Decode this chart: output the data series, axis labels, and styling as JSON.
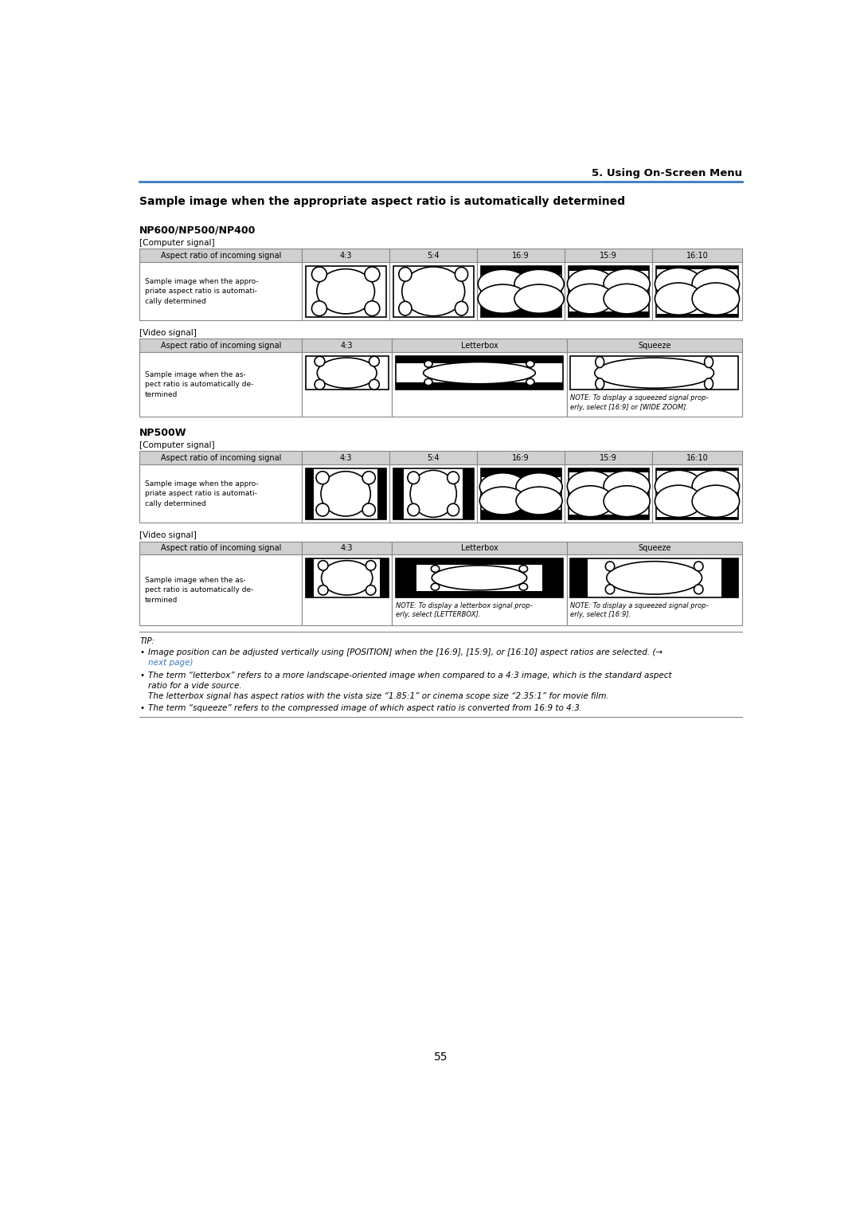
{
  "page_title": "5. Using On-Screen Menu",
  "main_title": "Sample image when the appropriate aspect ratio is automatically determined",
  "section1_title": "NP600/NP500/NP400",
  "section1_comp_label": "[Computer signal]",
  "section1_comp_headers": [
    "Aspect ratio of incoming signal",
    "4:3",
    "5:4",
    "16:9",
    "15:9",
    "16:10"
  ],
  "section1_comp_row_label": "Sample image when the appro-\npriate aspect ratio is automati-\ncally determined",
  "section1_vid_label": "[Video signal]",
  "section1_vid_headers": [
    "Aspect ratio of incoming signal",
    "4:3",
    "Letterbox",
    "Squeeze"
  ],
  "section1_vid_row_label": "Sample image when the as-\npect ratio is automatically de-\ntermined",
  "section1_vid_note": "NOTE: To display a squeezed signal prop-\nerly, select [16:9] or [WIDE ZOOM].",
  "section2_title": "NP500W",
  "section2_comp_label": "[Computer signal]",
  "section2_comp_headers": [
    "Aspect ratio of incoming signal",
    "4:3",
    "5:4",
    "16:9",
    "15:9",
    "16:10"
  ],
  "section2_comp_row_label": "Sample image when the appro-\npriate aspect ratio is automati-\ncally determined",
  "section2_vid_label": "[Video signal]",
  "section2_vid_headers": [
    "Aspect ratio of incoming signal",
    "4:3",
    "Letterbox",
    "Squeeze"
  ],
  "section2_vid_row_label": "Sample image when the as-\npect ratio is automatically de-\ntermined",
  "section2_vid_note1": "NOTE: To display a letterbox signal prop-\nerly, select [LETTERBOX].",
  "section2_vid_note2": "NOTE: To display a squeezed signal prop-\nerly, select [16:9].",
  "tip_title": "TIP:",
  "tip_bullets": [
    "Image position can be adjusted vertically using [POSITION] when the [16:9], [15:9], or [16:10] aspect ratios are selected. (→",
    "next page)",
    "The term “letterbox” refers to a more landscape-oriented image when compared to a 4:3 image, which is the standard aspect",
    "ratio for a vide source.",
    "The letterbox signal has aspect ratios with the vista size “1.85:1” or cinema scope size “2.35:1” for movie film.",
    "The term “squeeze” refers to the compressed image of which aspect ratio is converted from 16:9 to 4:3."
  ],
  "tip_link_text": "next page",
  "page_number": "55",
  "header_bg": "#d0d0d0",
  "line_color": "#3a7abf",
  "bg_color": "#ffffff"
}
